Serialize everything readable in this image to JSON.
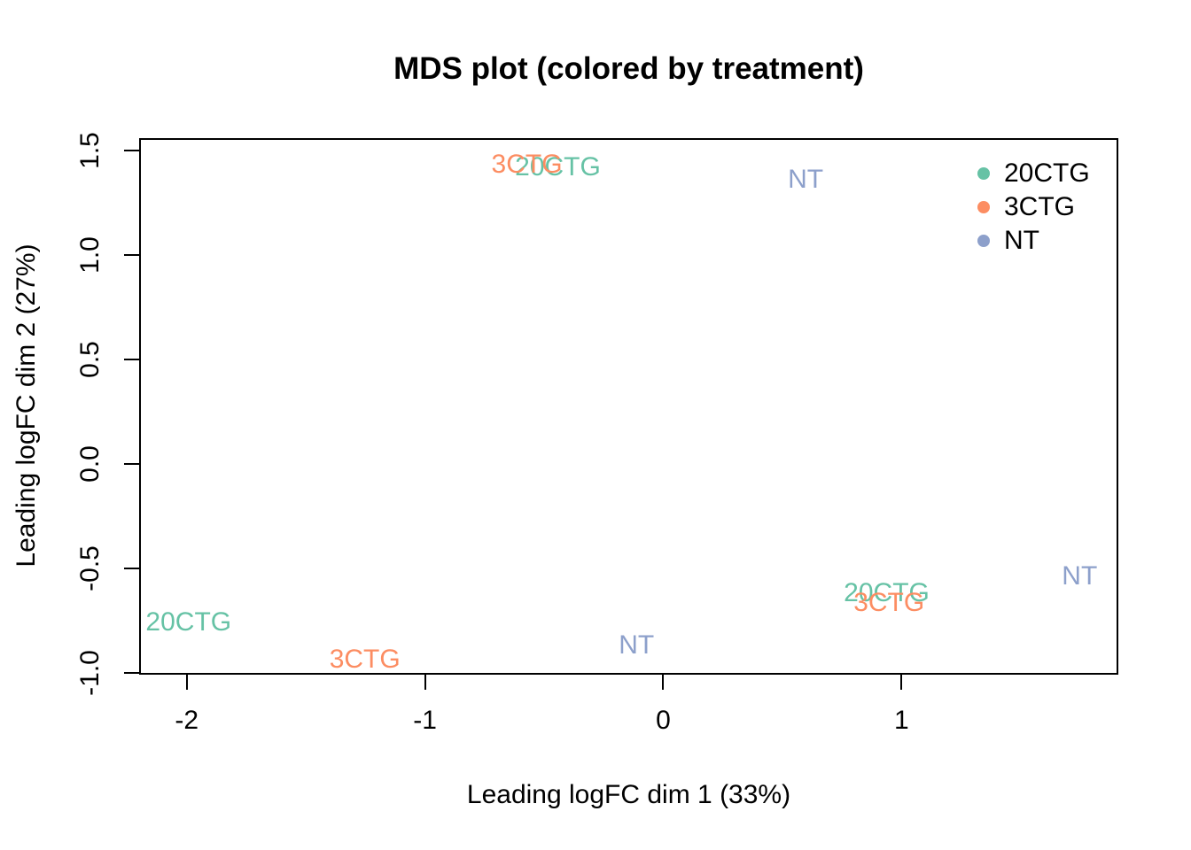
{
  "title": "MDS plot (colored by treatment)",
  "axes": {
    "x": {
      "label": "Leading logFC dim 1 (33%)",
      "ticks": [
        -2,
        -1,
        0,
        1
      ],
      "tick_labels": [
        "-2",
        "-1",
        "0",
        "1"
      ]
    },
    "y": {
      "label": "Leading logFC dim 2 (27%)",
      "ticks": [
        1.5,
        1.0,
        0.5,
        0.0,
        -0.5,
        -1.0
      ],
      "tick_labels": [
        "1.5",
        "1.0",
        "0.5",
        "0.0",
        "-0.5",
        "-1.0"
      ]
    }
  },
  "legend": {
    "items": [
      {
        "label": "20CTG",
        "color": "#66C2A5"
      },
      {
        "label": "3CTG",
        "color": "#FC8D62"
      },
      {
        "label": "NT",
        "color": "#8DA0CB"
      }
    ]
  },
  "colors": {
    "axis": "#000000",
    "background": "#ffffff",
    "group_20CTG": "#66C2A5",
    "group_3CTG": "#FC8D62",
    "group_NT": "#8DA0CB"
  },
  "chart_data": {
    "type": "scatter",
    "title": "MDS plot (colored by treatment)",
    "xlabel": "Leading logFC dim 1 (33%)",
    "ylabel": "Leading logFC dim 2 (27%)",
    "xlim": [
      -2.2,
      1.91
    ],
    "ylim": [
      -1.01,
      1.56
    ],
    "grid": false,
    "legend_position": "top-right",
    "point_style": "group-name-text-labels",
    "series": [
      {
        "name": "20CTG",
        "color": "#66C2A5",
        "points": [
          {
            "x": -0.45,
            "y": 1.43
          },
          {
            "x": -2.0,
            "y": -0.75
          },
          {
            "x": 0.93,
            "y": -0.61
          }
        ]
      },
      {
        "name": "3CTG",
        "color": "#FC8D62",
        "points": [
          {
            "x": -0.58,
            "y": 1.44
          },
          {
            "x": -1.26,
            "y": -0.93
          },
          {
            "x": 0.94,
            "y": -0.66
          }
        ]
      },
      {
        "name": "NT",
        "color": "#8DA0CB",
        "points": [
          {
            "x": 0.59,
            "y": 1.37
          },
          {
            "x": -0.12,
            "y": -0.86
          },
          {
            "x": 1.74,
            "y": -0.53
          }
        ]
      }
    ]
  }
}
